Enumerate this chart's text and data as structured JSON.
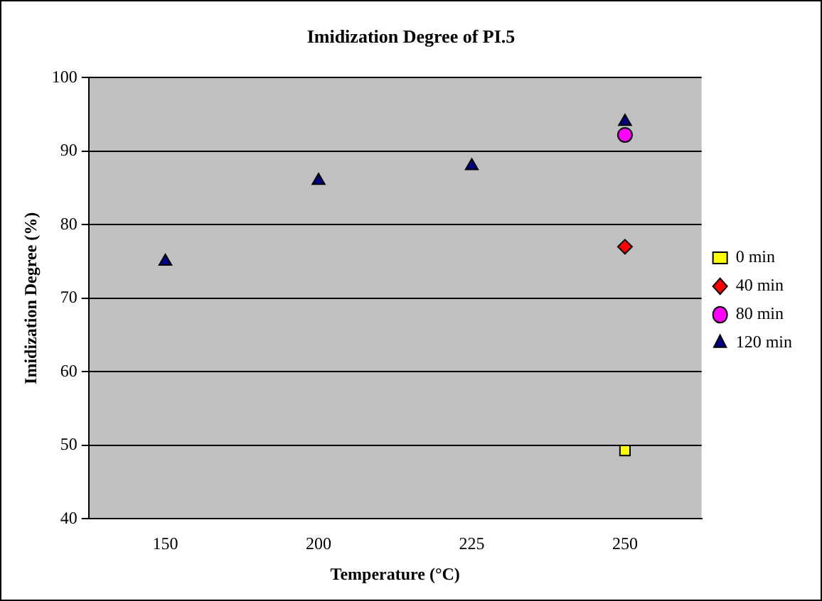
{
  "chart_data": {
    "type": "scatter",
    "title": "Imidization Degree of PI.5",
    "xlabel": "Temperature (°C)",
    "ylabel": "Imidization Degree (%)",
    "categories": [
      "150",
      "200",
      "225",
      "250"
    ],
    "series": [
      {
        "name": "0 min",
        "color": "#ffff00",
        "marker": "square",
        "values": [
          null,
          null,
          null,
          49.3
        ]
      },
      {
        "name": "40 min",
        "color": "#ff0000",
        "marker": "diamond",
        "values": [
          null,
          null,
          null,
          77
        ]
      },
      {
        "name": "80 min",
        "color": "#ff00ff",
        "marker": "circle",
        "values": [
          null,
          null,
          null,
          92.2
        ]
      },
      {
        "name": "120 min",
        "color": "#000080",
        "marker": "triangle",
        "values": [
          75,
          86,
          88,
          94
        ]
      }
    ],
    "ylim": [
      40,
      100
    ],
    "yticks": [
      40,
      50,
      60,
      70,
      80,
      90,
      100
    ],
    "grid": "y",
    "legend": "right"
  }
}
